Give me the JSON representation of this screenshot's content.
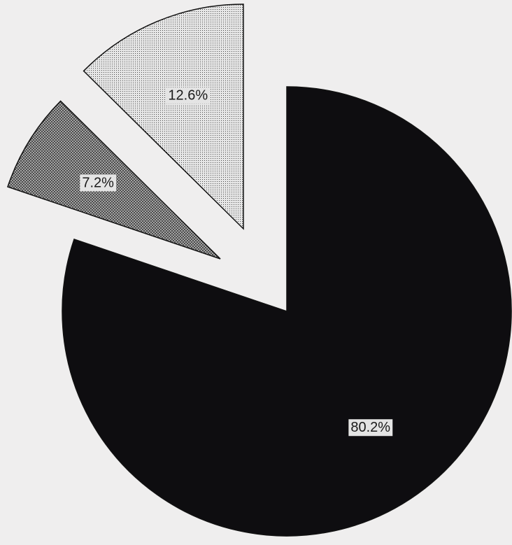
{
  "chart_data": {
    "type": "pie",
    "slices": [
      {
        "label": "80.2%",
        "value": 80.2,
        "fill": "#0e0d10",
        "pattern": "solid"
      },
      {
        "label": "7.2%",
        "value": 7.2,
        "fill": "#8a8a8a",
        "pattern": "crosshatch"
      },
      {
        "label": "12.6%",
        "value": 12.6,
        "fill": "#d8d8d8",
        "pattern": "fine-dots"
      }
    ],
    "exploded": true,
    "start_angle_deg": 0,
    "direction": "clockwise",
    "legend": "none"
  }
}
